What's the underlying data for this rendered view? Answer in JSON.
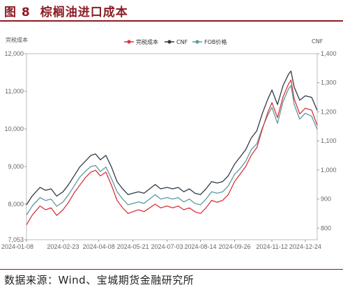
{
  "figure": {
    "number": "图 8",
    "title": "棕榈油进口成本",
    "source": "数据来源：Wind、宝城期货金融研究所"
  },
  "chart_data": {
    "type": "line",
    "left_axis_unit": "完税成本",
    "right_axis_unit": "CNF",
    "ylim_left": [
      7053,
      12000
    ],
    "ylim_right": [
      760,
      1400
    ],
    "yticks_left": [
      "12,000",
      "11,000",
      "10,000",
      "9,000",
      "8,000",
      "7,053"
    ],
    "yticks_right": [
      "1,400",
      "1,300",
      "1,200",
      "1,100",
      "1,000",
      "900",
      "800"
    ],
    "x_ticks": [
      "2024-01-08",
      "2024-02-23",
      "2024-04-08",
      "2024-05-21",
      "2024-07-03",
      "2024-08-14",
      "2024-09-26",
      "2024-11-12",
      "2024-12-24"
    ],
    "x_range": [
      "2024-01-08",
      "2025-01-08"
    ],
    "legend_position": "top",
    "grid": false,
    "series": [
      {
        "name": "完税成本",
        "axis": "left",
        "color": "#d9343c",
        "points": [
          [
            "2024-01-08",
            7450
          ],
          [
            "2024-01-15",
            7700
          ],
          [
            "2024-01-25",
            7950
          ],
          [
            "2024-02-01",
            7850
          ],
          [
            "2024-02-08",
            7900
          ],
          [
            "2024-02-15",
            7700
          ],
          [
            "2024-02-23",
            7850
          ],
          [
            "2024-03-01",
            8050
          ],
          [
            "2024-03-08",
            8300
          ],
          [
            "2024-03-15",
            8500
          ],
          [
            "2024-03-22",
            8700
          ],
          [
            "2024-03-29",
            8850
          ],
          [
            "2024-04-04",
            8900
          ],
          [
            "2024-04-10",
            8750
          ],
          [
            "2024-04-17",
            8850
          ],
          [
            "2024-04-24",
            8500
          ],
          [
            "2024-05-01",
            8100
          ],
          [
            "2024-05-08",
            7900
          ],
          [
            "2024-05-15",
            7750
          ],
          [
            "2024-05-21",
            7800
          ],
          [
            "2024-05-28",
            7850
          ],
          [
            "2024-06-04",
            7800
          ],
          [
            "2024-06-11",
            7900
          ],
          [
            "2024-06-18",
            8000
          ],
          [
            "2024-06-25",
            7900
          ],
          [
            "2024-07-03",
            7950
          ],
          [
            "2024-07-10",
            7900
          ],
          [
            "2024-07-17",
            7950
          ],
          [
            "2024-07-24",
            7850
          ],
          [
            "2024-07-31",
            7900
          ],
          [
            "2024-08-07",
            7800
          ],
          [
            "2024-08-14",
            7750
          ],
          [
            "2024-08-21",
            7900
          ],
          [
            "2024-08-28",
            8100
          ],
          [
            "2024-09-04",
            8050
          ],
          [
            "2024-09-11",
            8100
          ],
          [
            "2024-09-18",
            8250
          ],
          [
            "2024-09-26",
            8600
          ],
          [
            "2024-10-03",
            8800
          ],
          [
            "2024-10-10",
            9000
          ],
          [
            "2024-10-17",
            9300
          ],
          [
            "2024-10-24",
            9500
          ],
          [
            "2024-10-31",
            10000
          ],
          [
            "2024-11-07",
            10450
          ],
          [
            "2024-11-12",
            10700
          ],
          [
            "2024-11-19",
            10300
          ],
          [
            "2024-11-26",
            10850
          ],
          [
            "2024-12-03",
            11200
          ],
          [
            "2024-12-06",
            11300
          ],
          [
            "2024-12-10",
            10800
          ],
          [
            "2024-12-17",
            10400
          ],
          [
            "2024-12-24",
            10550
          ],
          [
            "2025-01-01",
            10500
          ],
          [
            "2025-01-08",
            10100
          ]
        ]
      },
      {
        "name": "CNF",
        "axis": "right",
        "color": "#2e3b47",
        "points": [
          [
            "2024-01-08",
            880
          ],
          [
            "2024-01-15",
            910
          ],
          [
            "2024-01-25",
            940
          ],
          [
            "2024-02-01",
            930
          ],
          [
            "2024-02-08",
            935
          ],
          [
            "2024-02-15",
            910
          ],
          [
            "2024-02-23",
            925
          ],
          [
            "2024-03-01",
            950
          ],
          [
            "2024-03-08",
            980
          ],
          [
            "2024-03-15",
            1010
          ],
          [
            "2024-03-22",
            1030
          ],
          [
            "2024-03-29",
            1050
          ],
          [
            "2024-04-04",
            1055
          ],
          [
            "2024-04-10",
            1035
          ],
          [
            "2024-04-17",
            1050
          ],
          [
            "2024-04-24",
            1010
          ],
          [
            "2024-05-01",
            960
          ],
          [
            "2024-05-08",
            935
          ],
          [
            "2024-05-15",
            915
          ],
          [
            "2024-05-21",
            920
          ],
          [
            "2024-05-28",
            925
          ],
          [
            "2024-06-04",
            920
          ],
          [
            "2024-06-11",
            935
          ],
          [
            "2024-06-18",
            950
          ],
          [
            "2024-06-25",
            935
          ],
          [
            "2024-07-03",
            940
          ],
          [
            "2024-07-10",
            935
          ],
          [
            "2024-07-17",
            940
          ],
          [
            "2024-07-24",
            925
          ],
          [
            "2024-07-31",
            935
          ],
          [
            "2024-08-07",
            920
          ],
          [
            "2024-08-14",
            915
          ],
          [
            "2024-08-21",
            935
          ],
          [
            "2024-08-28",
            960
          ],
          [
            "2024-09-04",
            955
          ],
          [
            "2024-09-11",
            960
          ],
          [
            "2024-09-18",
            980
          ],
          [
            "2024-09-26",
            1020
          ],
          [
            "2024-10-03",
            1045
          ],
          [
            "2024-10-10",
            1070
          ],
          [
            "2024-10-17",
            1110
          ],
          [
            "2024-10-24",
            1135
          ],
          [
            "2024-10-31",
            1195
          ],
          [
            "2024-11-07",
            1245
          ],
          [
            "2024-11-12",
            1275
          ],
          [
            "2024-11-19",
            1225
          ],
          [
            "2024-11-26",
            1290
          ],
          [
            "2024-12-03",
            1330
          ],
          [
            "2024-12-06",
            1340
          ],
          [
            "2024-12-10",
            1285
          ],
          [
            "2024-12-17",
            1240
          ],
          [
            "2024-12-24",
            1255
          ],
          [
            "2025-01-01",
            1250
          ],
          [
            "2025-01-08",
            1205
          ]
        ]
      },
      {
        "name": "FOB价格",
        "axis": "right",
        "color": "#5b9aa0",
        "points": [
          [
            "2024-01-08",
            845
          ],
          [
            "2024-01-15",
            875
          ],
          [
            "2024-01-25",
            905
          ],
          [
            "2024-02-01",
            895
          ],
          [
            "2024-02-08",
            900
          ],
          [
            "2024-02-15",
            875
          ],
          [
            "2024-02-23",
            890
          ],
          [
            "2024-03-01",
            915
          ],
          [
            "2024-03-08",
            945
          ],
          [
            "2024-03-15",
            975
          ],
          [
            "2024-03-22",
            995
          ],
          [
            "2024-03-29",
            1012
          ],
          [
            "2024-04-04",
            1015
          ],
          [
            "2024-04-10",
            995
          ],
          [
            "2024-04-17",
            1010
          ],
          [
            "2024-04-24",
            970
          ],
          [
            "2024-05-01",
            925
          ],
          [
            "2024-05-08",
            900
          ],
          [
            "2024-05-15",
            880
          ],
          [
            "2024-05-21",
            885
          ],
          [
            "2024-05-28",
            890
          ],
          [
            "2024-06-04",
            885
          ],
          [
            "2024-06-11",
            900
          ],
          [
            "2024-06-18",
            915
          ],
          [
            "2024-06-25",
            900
          ],
          [
            "2024-07-03",
            905
          ],
          [
            "2024-07-10",
            900
          ],
          [
            "2024-07-17",
            905
          ],
          [
            "2024-07-24",
            890
          ],
          [
            "2024-07-31",
            900
          ],
          [
            "2024-08-07",
            885
          ],
          [
            "2024-08-14",
            880
          ],
          [
            "2024-08-21",
            900
          ],
          [
            "2024-08-28",
            925
          ],
          [
            "2024-09-04",
            920
          ],
          [
            "2024-09-11",
            925
          ],
          [
            "2024-09-18",
            945
          ],
          [
            "2024-09-26",
            985
          ],
          [
            "2024-10-03",
            1005
          ],
          [
            "2024-10-10",
            1030
          ],
          [
            "2024-10-17",
            1070
          ],
          [
            "2024-10-24",
            1090
          ],
          [
            "2024-10-31",
            1145
          ],
          [
            "2024-11-07",
            1190
          ],
          [
            "2024-11-12",
            1215
          ],
          [
            "2024-11-19",
            1160
          ],
          [
            "2024-11-26",
            1235
          ],
          [
            "2024-12-03",
            1280
          ],
          [
            "2024-12-06",
            1290
          ],
          [
            "2024-12-10",
            1225
          ],
          [
            "2024-12-17",
            1175
          ],
          [
            "2024-12-24",
            1195
          ],
          [
            "2025-01-01",
            1185
          ],
          [
            "2025-01-08",
            1140
          ]
        ]
      }
    ]
  }
}
